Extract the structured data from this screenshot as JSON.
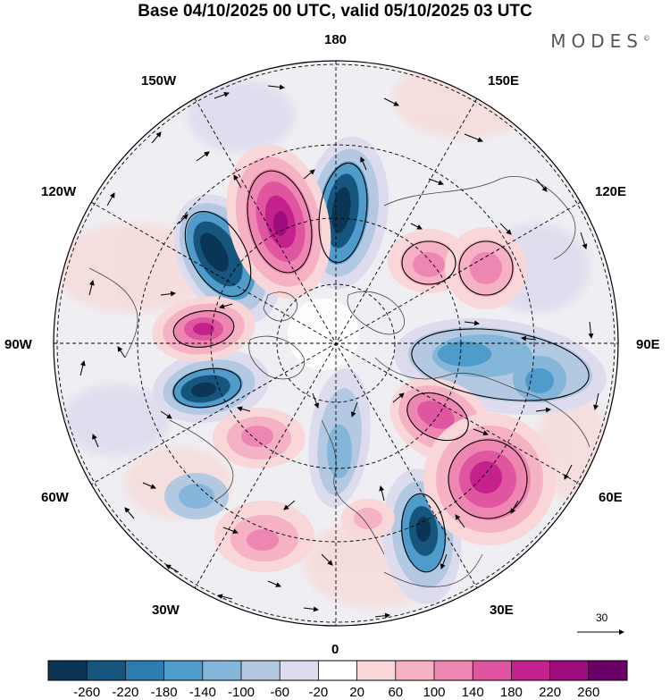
{
  "title": "Base 04/10/2025 00 UTC, valid 05/10/2025 03 UTC",
  "brand": {
    "name": "MODES",
    "mark": "©"
  },
  "longitude_labels": {
    "lon_180": "180",
    "lon_150w": "150W",
    "lon_150e": "150E",
    "lon_120w": "120W",
    "lon_120e": "120E",
    "lon_90w": "90W",
    "lon_90e": "90E",
    "lon_60w": "60W",
    "lon_60e": "60E",
    "lon_30w": "30W",
    "lon_30e": "30E",
    "lon_0": "0"
  },
  "reference_vector": {
    "value": "30"
  },
  "colorbar": {
    "ticks": [
      "-260",
      "-220",
      "-180",
      "-140",
      "-100",
      "-60",
      "-20",
      "20",
      "60",
      "100",
      "140",
      "180",
      "220",
      "260"
    ],
    "colors": [
      "#0b3554",
      "#15557e",
      "#2a7cb1",
      "#4f9bc9",
      "#83b6d8",
      "#b3c9e2",
      "#dcdcee",
      "#ffffff",
      "#f9d6d8",
      "#f4b2c4",
      "#ee86b2",
      "#e0559f",
      "#c4218c",
      "#9e0b7d",
      "#6b0068"
    ]
  },
  "anomaly_centers": [
    {
      "name": "low-150w",
      "sign": "negative",
      "intensity": 0.95
    },
    {
      "name": "high-165w",
      "sign": "positive",
      "intensity": 0.85
    },
    {
      "name": "low-170e",
      "sign": "negative",
      "intensity": 0.95
    },
    {
      "name": "high-105w",
      "sign": "positive",
      "intensity": 0.8
    },
    {
      "name": "low-75w",
      "sign": "negative",
      "intensity": 0.9
    },
    {
      "name": "high-135e",
      "sign": "positive",
      "intensity": 0.55
    },
    {
      "name": "high-115e",
      "sign": "positive",
      "intensity": 0.55
    },
    {
      "name": "low-90e",
      "sign": "negative",
      "intensity": 0.6
    },
    {
      "name": "high-70e",
      "sign": "positive",
      "intensity": 0.75
    },
    {
      "name": "high-40e",
      "sign": "positive",
      "intensity": 0.85
    },
    {
      "name": "low-20e",
      "sign": "negative",
      "intensity": 0.95
    },
    {
      "name": "low-15e",
      "sign": "negative",
      "intensity": 0.5
    },
    {
      "name": "high-30w",
      "sign": "positive",
      "intensity": 0.45
    },
    {
      "name": "high-45w",
      "sign": "positive",
      "intensity": 0.45
    }
  ]
}
